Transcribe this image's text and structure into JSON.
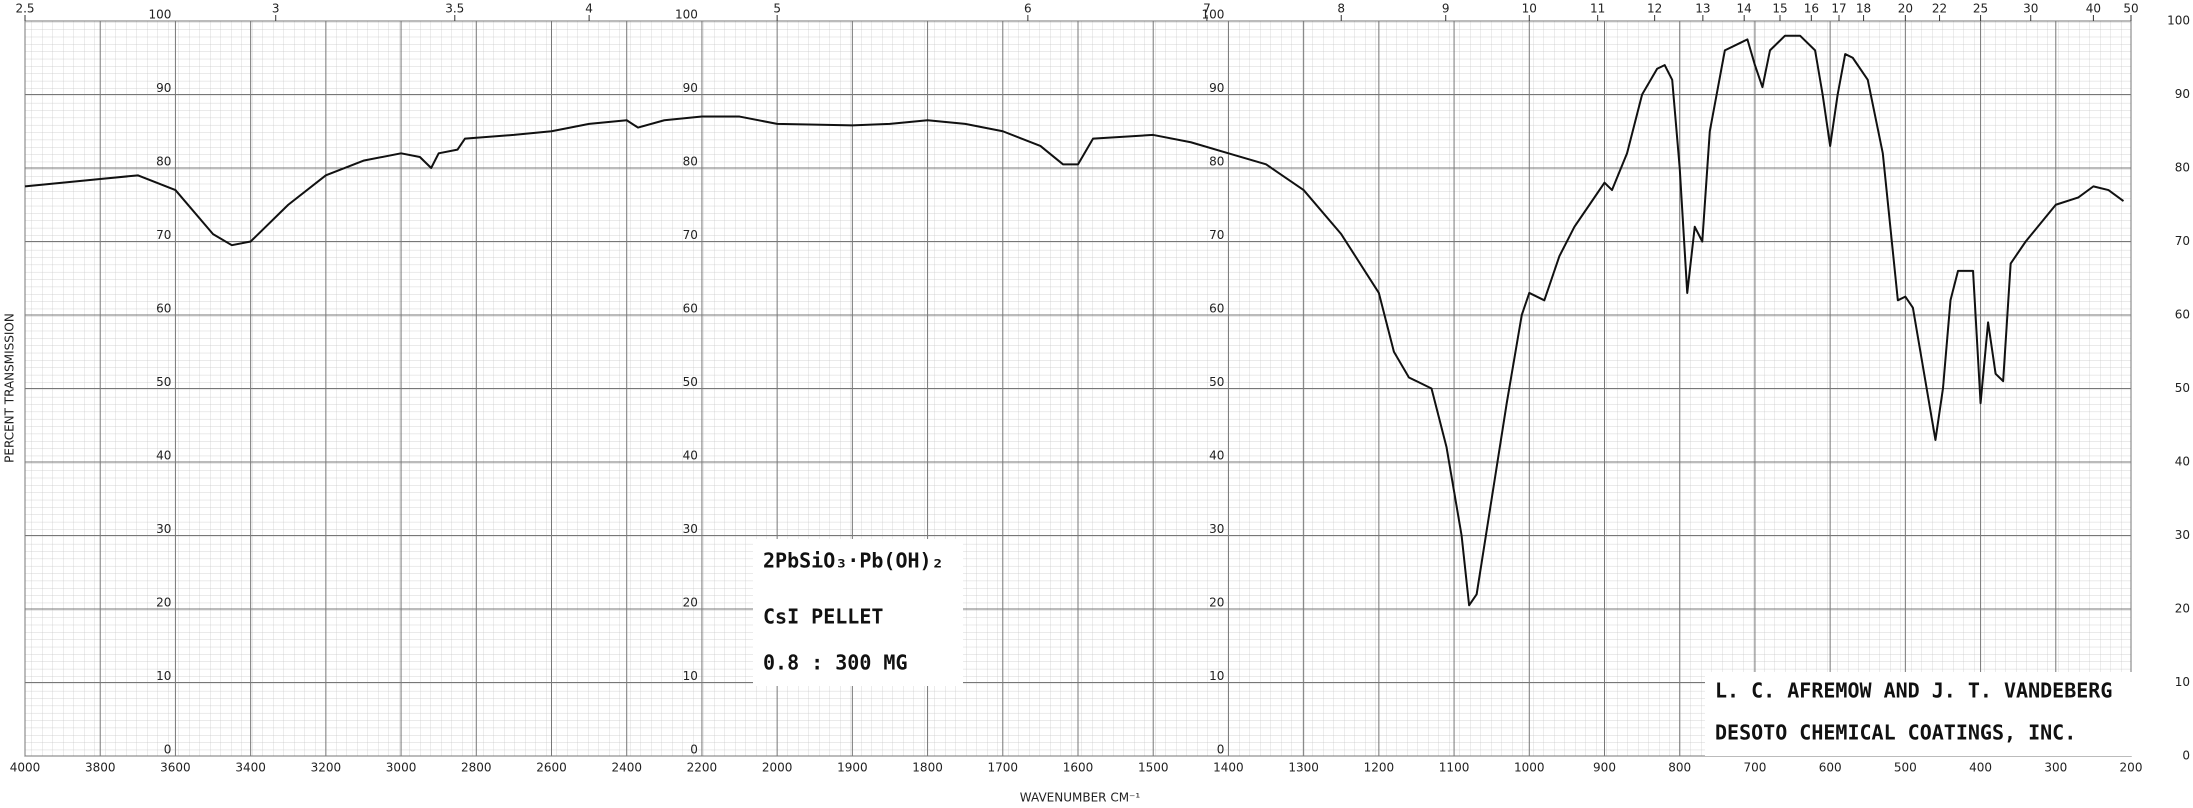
{
  "chart_data": {
    "type": "line",
    "y_label": "PERCENT TRANSMISSION",
    "x_label": "WAVENUMBER CM⁻¹",
    "annotations": [
      "2PbSiO₃·Pb(OH)₂",
      "CsI PELLET",
      "0.8 : 300 MG",
      "L. C. AFREMOW AND J. T. VANDEBERG",
      "DESOTO CHEMICAL COATINGS, INC."
    ],
    "color": "#111111",
    "grid": true,
    "xlim": [
      4000,
      200
    ],
    "x_scale_change": {
      "at": 2000,
      "factor": 2
    },
    "xticks": [
      4000,
      3800,
      3600,
      3400,
      3200,
      3000,
      2800,
      2600,
      2400,
      2200,
      2000,
      1900,
      1800,
      1700,
      1600,
      1500,
      1400,
      1300,
      1200,
      1100,
      1000,
      900,
      800,
      700,
      600,
      500,
      400,
      300,
      200
    ],
    "x2ticks": [
      2.5,
      3,
      3.5,
      4,
      5,
      6,
      7,
      8,
      9,
      10,
      11,
      12,
      13,
      14,
      15,
      16,
      17,
      18,
      20,
      22,
      25,
      30,
      40,
      50
    ],
    "ylim": [
      0,
      100
    ],
    "yticks": [
      0,
      10,
      20,
      30,
      40,
      50,
      60,
      70,
      80,
      90,
      100
    ],
    "x": [
      4000,
      3800,
      3700,
      3600,
      3500,
      3450,
      3400,
      3300,
      3200,
      3100,
      3000,
      2950,
      2920,
      2900,
      2850,
      2830,
      2700,
      2600,
      2500,
      2400,
      2370,
      2300,
      2200,
      2100,
      2000,
      1900,
      1850,
      1800,
      1750,
      1700,
      1650,
      1620,
      1600,
      1580,
      1500,
      1450,
      1400,
      1350,
      1300,
      1250,
      1200,
      1180,
      1160,
      1150,
      1130,
      1110,
      1090,
      1080,
      1070,
      1050,
      1030,
      1010,
      1000,
      980,
      960,
      940,
      920,
      900,
      890,
      870,
      850,
      830,
      820,
      810,
      800,
      790,
      780,
      770,
      760,
      740,
      720,
      710,
      700,
      690,
      680,
      660,
      640,
      620,
      610,
      600,
      590,
      580,
      570,
      550,
      530,
      510,
      500,
      490,
      480,
      460,
      450,
      440,
      430,
      410,
      400,
      390,
      380,
      370,
      360,
      340,
      300,
      270,
      250,
      230,
      210
    ],
    "values": [
      77.5,
      78.5,
      79,
      77,
      71,
      69.5,
      70,
      75,
      79,
      81,
      82,
      81.5,
      80,
      82,
      82.5,
      84,
      84.5,
      85,
      86,
      86.5,
      85.5,
      86.5,
      87,
      87,
      86,
      85.8,
      86,
      86.5,
      86,
      85,
      83,
      80.5,
      80.5,
      84,
      84.5,
      83.5,
      82,
      80.5,
      77,
      71,
      63,
      55,
      51.5,
      51,
      50,
      42,
      30,
      20.5,
      22,
      35,
      48,
      60,
      63,
      62,
      68,
      72,
      75,
      78,
      77,
      82,
      90,
      93.5,
      94,
      92,
      80,
      63,
      72,
      70,
      85,
      96,
      97,
      97.5,
      94,
      91,
      96,
      98,
      98,
      96,
      90,
      83,
      90,
      95.5,
      95,
      92,
      82,
      62,
      62.5,
      61,
      55,
      43,
      50,
      62,
      66,
      66,
      48,
      59,
      52,
      51,
      67,
      70,
      75,
      76,
      77.5,
      77,
      75.5
    ]
  }
}
